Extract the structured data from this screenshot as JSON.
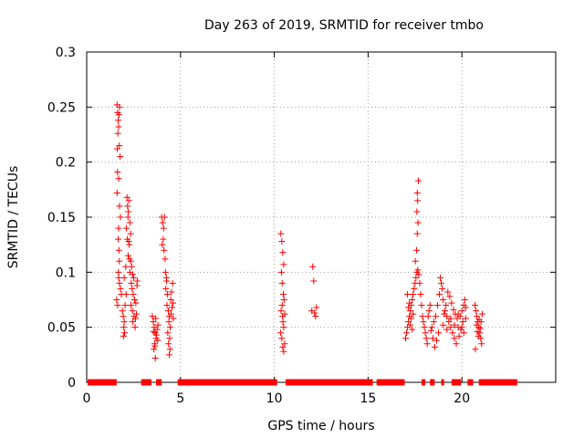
{
  "chart_data": {
    "type": "scatter",
    "title": "Day 263 of 2019, SRMTID for receiver tmbo",
    "xlabel": "GPS time / hours",
    "ylabel": "SRMTID / TECUs",
    "xlim": [
      0,
      25
    ],
    "ylim": [
      0,
      0.3
    ],
    "xticks": [
      0,
      5,
      10,
      15,
      20
    ],
    "xtick_labels": [
      "0",
      "5",
      "10",
      "15",
      "20"
    ],
    "yticks": [
      0,
      0.05,
      0.1,
      0.15,
      0.2,
      0.25,
      0.3
    ],
    "ytick_labels": [
      "0",
      "0.05",
      "0.1",
      "0.15",
      "0.2",
      "0.25",
      "0.3"
    ],
    "grid": true,
    "marker": "+",
    "color": "#ff0000",
    "zero_ranges": [
      [
        0.05,
        1.6
      ],
      [
        2.9,
        3.45
      ],
      [
        3.7,
        4.0
      ],
      [
        4.85,
        10.15
      ],
      [
        10.6,
        15.25
      ],
      [
        15.45,
        16.95
      ],
      [
        17.85,
        18.05
      ],
      [
        18.3,
        18.55
      ],
      [
        18.9,
        19.05
      ],
      [
        19.45,
        19.95
      ],
      [
        20.3,
        20.6
      ],
      [
        20.9,
        22.95
      ]
    ],
    "series": [
      {
        "name": "SRMTID",
        "points": [
          [
            1.62,
            0.252
          ],
          [
            1.65,
            0.245
          ],
          [
            1.68,
            0.238
          ],
          [
            1.7,
            0.232
          ],
          [
            1.72,
            0.243
          ],
          [
            1.75,
            0.25
          ],
          [
            1.66,
            0.226
          ],
          [
            1.74,
            0.215
          ],
          [
            1.63,
            0.212
          ],
          [
            1.78,
            0.205
          ],
          [
            1.64,
            0.191
          ],
          [
            1.7,
            0.185
          ],
          [
            1.62,
            0.172
          ],
          [
            1.75,
            0.16
          ],
          [
            1.8,
            0.15
          ],
          [
            1.7,
            0.14
          ],
          [
            1.68,
            0.13
          ],
          [
            1.72,
            0.12
          ],
          [
            1.74,
            0.11
          ],
          [
            1.69,
            0.1
          ],
          [
            1.71,
            0.095
          ],
          [
            1.75,
            0.09
          ],
          [
            1.8,
            0.085
          ],
          [
            1.85,
            0.08
          ],
          [
            1.6,
            0.075
          ],
          [
            1.65,
            0.07
          ],
          [
            1.9,
            0.065
          ],
          [
            1.95,
            0.06
          ],
          [
            2.0,
            0.055
          ],
          [
            1.98,
            0.05
          ],
          [
            2.02,
            0.045
          ],
          [
            1.96,
            0.042
          ],
          [
            2.05,
            0.07
          ],
          [
            2.1,
            0.08
          ],
          [
            2.0,
            0.095
          ],
          [
            2.08,
            0.105
          ],
          [
            2.15,
            0.168
          ],
          [
            2.18,
            0.16
          ],
          [
            2.2,
            0.15
          ],
          [
            2.25,
            0.165
          ],
          [
            2.22,
            0.155
          ],
          [
            2.12,
            0.14
          ],
          [
            2.3,
            0.145
          ],
          [
            2.17,
            0.13
          ],
          [
            2.27,
            0.125
          ],
          [
            2.21,
            0.115
          ],
          [
            2.35,
            0.11
          ],
          [
            2.4,
            0.105
          ],
          [
            2.3,
            0.1
          ],
          [
            2.45,
            0.098
          ],
          [
            2.5,
            0.095
          ],
          [
            2.38,
            0.09
          ],
          [
            2.42,
            0.085
          ],
          [
            2.48,
            0.08
          ],
          [
            2.55,
            0.075
          ],
          [
            2.36,
            0.07
          ],
          [
            2.44,
            0.065
          ],
          [
            2.52,
            0.06
          ],
          [
            2.6,
            0.058
          ],
          [
            2.58,
            0.05
          ],
          [
            2.46,
            0.055
          ],
          [
            2.65,
            0.062
          ],
          [
            2.62,
            0.072
          ],
          [
            2.68,
            0.088
          ],
          [
            2.7,
            0.092
          ],
          [
            2.34,
            0.135
          ],
          [
            2.24,
            0.128
          ],
          [
            2.28,
            0.112
          ],
          [
            3.5,
            0.06
          ],
          [
            3.55,
            0.055
          ],
          [
            3.6,
            0.05
          ],
          [
            3.65,
            0.045
          ],
          [
            3.7,
            0.04
          ],
          [
            3.62,
            0.035
          ],
          [
            3.58,
            0.03
          ],
          [
            3.66,
            0.022
          ],
          [
            3.75,
            0.048
          ],
          [
            3.8,
            0.052
          ],
          [
            3.68,
            0.058
          ],
          [
            3.72,
            0.043
          ],
          [
            3.78,
            0.038
          ],
          [
            3.56,
            0.046
          ],
          [
            3.64,
            0.033
          ],
          [
            4.0,
            0.15
          ],
          [
            4.05,
            0.145
          ],
          [
            4.1,
            0.14
          ],
          [
            4.15,
            0.15
          ],
          [
            4.08,
            0.13
          ],
          [
            4.12,
            0.12
          ],
          [
            4.03,
            0.125
          ],
          [
            4.18,
            0.112
          ],
          [
            4.2,
            0.1
          ],
          [
            4.25,
            0.095
          ],
          [
            4.22,
            0.085
          ],
          [
            4.3,
            0.08
          ],
          [
            4.28,
            0.07
          ],
          [
            4.35,
            0.065
          ],
          [
            4.4,
            0.06
          ],
          [
            4.38,
            0.055
          ],
          [
            4.45,
            0.05
          ],
          [
            4.32,
            0.045
          ],
          [
            4.42,
            0.04
          ],
          [
            4.36,
            0.035
          ],
          [
            4.44,
            0.03
          ],
          [
            4.4,
            0.025
          ],
          [
            4.5,
            0.062
          ],
          [
            4.55,
            0.068
          ],
          [
            4.6,
            0.072
          ],
          [
            4.48,
            0.075
          ],
          [
            4.52,
            0.082
          ],
          [
            4.58,
            0.09
          ],
          [
            4.62,
            0.058
          ],
          [
            4.26,
            0.092
          ],
          [
            10.35,
            0.135
          ],
          [
            10.4,
            0.128
          ],
          [
            10.45,
            0.118
          ],
          [
            10.5,
            0.107
          ],
          [
            10.38,
            0.1
          ],
          [
            10.42,
            0.09
          ],
          [
            10.48,
            0.08
          ],
          [
            10.52,
            0.075
          ],
          [
            10.36,
            0.065
          ],
          [
            10.44,
            0.06
          ],
          [
            10.46,
            0.055
          ],
          [
            10.5,
            0.05
          ],
          [
            10.34,
            0.045
          ],
          [
            10.4,
            0.04
          ],
          [
            10.55,
            0.035
          ],
          [
            10.45,
            0.032
          ],
          [
            10.5,
            0.028
          ],
          [
            10.42,
            0.07
          ],
          [
            10.56,
            0.062
          ],
          [
            12.05,
            0.105
          ],
          [
            12.1,
            0.092
          ],
          [
            12.0,
            0.065
          ],
          [
            12.15,
            0.063
          ],
          [
            12.2,
            0.06
          ],
          [
            12.25,
            0.068
          ],
          [
            17.0,
            0.04
          ],
          [
            17.05,
            0.045
          ],
          [
            17.1,
            0.05
          ],
          [
            17.15,
            0.055
          ],
          [
            17.2,
            0.06
          ],
          [
            17.25,
            0.065
          ],
          [
            17.3,
            0.07
          ],
          [
            17.35,
            0.075
          ],
          [
            17.4,
            0.08
          ],
          [
            17.45,
            0.085
          ],
          [
            17.5,
            0.09
          ],
          [
            17.55,
            0.095
          ],
          [
            17.6,
            0.1
          ],
          [
            17.65,
            0.102
          ],
          [
            17.52,
            0.11
          ],
          [
            17.58,
            0.12
          ],
          [
            17.62,
            0.135
          ],
          [
            17.66,
            0.145
          ],
          [
            17.6,
            0.155
          ],
          [
            17.64,
            0.165
          ],
          [
            17.62,
            0.172
          ],
          [
            17.68,
            0.183
          ],
          [
            17.7,
            0.098
          ],
          [
            17.75,
            0.09
          ],
          [
            17.8,
            0.08
          ],
          [
            17.85,
            0.07
          ],
          [
            17.9,
            0.06
          ],
          [
            17.95,
            0.055
          ],
          [
            18.0,
            0.05
          ],
          [
            18.05,
            0.045
          ],
          [
            18.1,
            0.04
          ],
          [
            18.15,
            0.035
          ],
          [
            18.2,
            0.06
          ],
          [
            18.25,
            0.065
          ],
          [
            18.3,
            0.07
          ],
          [
            17.1,
            0.08
          ],
          [
            17.2,
            0.072
          ],
          [
            17.3,
            0.058
          ],
          [
            17.4,
            0.062
          ],
          [
            17.15,
            0.068
          ],
          [
            17.25,
            0.052
          ],
          [
            17.35,
            0.048
          ],
          [
            18.4,
            0.05
          ],
          [
            18.5,
            0.055
          ],
          [
            18.6,
            0.06
          ],
          [
            18.7,
            0.07
          ],
          [
            18.8,
            0.08
          ],
          [
            18.9,
            0.09
          ],
          [
            18.85,
            0.095
          ],
          [
            18.95,
            0.085
          ],
          [
            19.0,
            0.075
          ],
          [
            19.1,
            0.065
          ],
          [
            19.2,
            0.06
          ],
          [
            19.3,
            0.055
          ],
          [
            19.4,
            0.05
          ],
          [
            19.5,
            0.045
          ],
          [
            19.6,
            0.04
          ],
          [
            19.7,
            0.035
          ],
          [
            19.8,
            0.05
          ],
          [
            19.9,
            0.06
          ],
          [
            20.0,
            0.065
          ],
          [
            20.1,
            0.07
          ],
          [
            20.15,
            0.075
          ],
          [
            20.2,
            0.068
          ],
          [
            20.05,
            0.055
          ],
          [
            19.95,
            0.048
          ],
          [
            19.85,
            0.042
          ],
          [
            19.75,
            0.058
          ],
          [
            19.65,
            0.062
          ],
          [
            19.55,
            0.066
          ],
          [
            19.45,
            0.072
          ],
          [
            19.35,
            0.078
          ],
          [
            19.25,
            0.082
          ],
          [
            19.15,
            0.07
          ],
          [
            19.05,
            0.062
          ],
          [
            18.75,
            0.045
          ],
          [
            18.65,
            0.038
          ],
          [
            18.55,
            0.032
          ],
          [
            18.45,
            0.04
          ],
          [
            18.35,
            0.047
          ],
          [
            19.0,
            0.052
          ],
          [
            19.2,
            0.048
          ],
          [
            19.4,
            0.058
          ],
          [
            19.6,
            0.052
          ],
          [
            19.8,
            0.062
          ],
          [
            20.0,
            0.05
          ],
          [
            20.1,
            0.045
          ],
          [
            20.2,
            0.058
          ],
          [
            20.7,
            0.07
          ],
          [
            20.75,
            0.065
          ],
          [
            20.8,
            0.06
          ],
          [
            20.85,
            0.055
          ],
          [
            20.9,
            0.05
          ],
          [
            20.95,
            0.045
          ],
          [
            21.0,
            0.04
          ],
          [
            21.05,
            0.035
          ],
          [
            20.72,
            0.03
          ],
          [
            20.78,
            0.052
          ],
          [
            20.82,
            0.046
          ],
          [
            20.88,
            0.042
          ],
          [
            20.92,
            0.057
          ],
          [
            20.98,
            0.049
          ],
          [
            21.02,
            0.055
          ],
          [
            21.08,
            0.062
          ]
        ]
      }
    ]
  }
}
